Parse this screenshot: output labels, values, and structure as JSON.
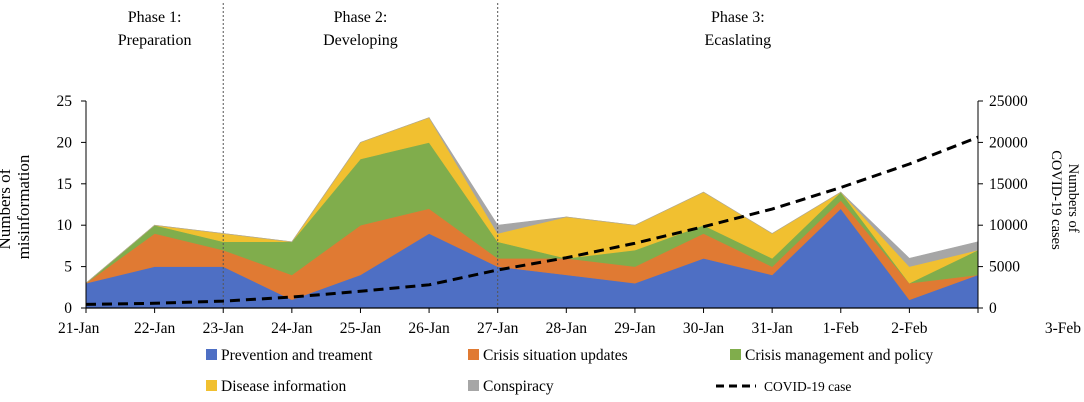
{
  "chart_data": {
    "type": "area",
    "stacked": true,
    "categories": [
      "21-Jan",
      "22-Jan",
      "23-Jan",
      "24-Jan",
      "25-Jan",
      "26-Jan",
      "27-Jan",
      "28-Jan",
      "29-Jan",
      "30-Jan",
      "31-Jan",
      "1-Feb",
      "2-Feb",
      "3-Feb"
    ],
    "series": [
      {
        "name": "Prevention and treament",
        "color": "#4e6fc4",
        "values": [
          3,
          5,
          5,
          1,
          4,
          9,
          5,
          4,
          3,
          6,
          4,
          12,
          1,
          4
        ]
      },
      {
        "name": "Crisis situation updates",
        "color": "#e07a33",
        "values": [
          0,
          4,
          2,
          3,
          6,
          3,
          1,
          2,
          2,
          3,
          1,
          1,
          2,
          0
        ]
      },
      {
        "name": "Crisis management and policy",
        "color": "#80ad4c",
        "values": [
          0,
          1,
          1,
          4,
          8,
          8,
          2,
          0,
          2,
          1,
          1,
          1,
          0,
          3
        ]
      },
      {
        "name": "Disease information",
        "color": "#f1c030",
        "values": [
          0,
          0,
          1,
          0,
          2,
          3,
          1,
          5,
          3,
          4,
          3,
          0,
          2,
          0
        ]
      },
      {
        "name": "Conspiracy",
        "color": "#a6a6a6",
        "values": [
          0,
          0,
          0,
          0,
          0,
          0,
          1,
          0,
          0,
          0,
          0,
          0,
          1,
          1
        ]
      }
    ],
    "line": {
      "name": "COVID-19 case",
      "color": "#000000",
      "axis": "right",
      "values": [
        440,
        570,
        830,
        1320,
        2020,
        2800,
        4590,
        6070,
        7820,
        9820,
        11950,
        14550,
        17390,
        20630
      ]
    },
    "ylabel": "Numbers of misinformation",
    "ylim": [
      0,
      25
    ],
    "yticks": [
      "0",
      "5",
      "10",
      "15",
      "20",
      "25"
    ],
    "y2label_line1": "Numbers of",
    "y2label_line2": "COVID-19 cases",
    "y2lim": [
      0,
      25000
    ],
    "y2ticks": [
      "0",
      "5000",
      "10000",
      "15000",
      "20000",
      "25000"
    ],
    "phases": [
      {
        "line1": "Phase 1:",
        "line2": "Preparation",
        "start": "21-Jan",
        "end": "23-Jan"
      },
      {
        "line1": "Phase 2:",
        "line2": "Developing",
        "start": "23-Jan",
        "end": "27-Jan"
      },
      {
        "line1": "Phase 3:",
        "line2": "Ecaslating",
        "start": "27-Jan",
        "end": "3-Feb"
      }
    ],
    "ylabel_line1": "Numbers of",
    "ylabel_line2": "misinformation",
    "legend_position": "bottom",
    "grid": false
  }
}
